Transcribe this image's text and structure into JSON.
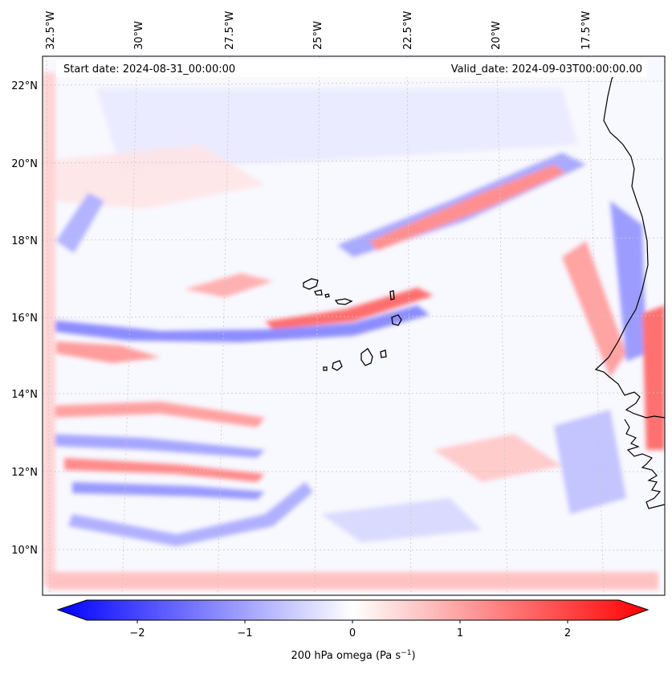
{
  "map": {
    "start_label": "Start date: 2024-08-31_00:00:00",
    "valid_label": "Valid_date: 2024-09-03T00:00:00.00",
    "lon_labels": [
      "32.5°W",
      "30°W",
      "27.5°W",
      "25°W",
      "22.5°W",
      "20°W",
      "17.5°W"
    ],
    "lat_labels": [
      "22°N",
      "20°N",
      "18°N",
      "16°N",
      "14°N",
      "12°N",
      "10°N"
    ],
    "field": "200 hPa omega",
    "colormap": "bwr",
    "colors": {
      "negative": "#0000ff",
      "zero": "#ffffff",
      "positive": "#ff0000",
      "coast": "#000000",
      "grid": "#c8c8c8"
    }
  },
  "colorbar": {
    "ticks": [
      "−2",
      "−1",
      "0",
      "1",
      "2"
    ],
    "min": -2.7,
    "max": 2.7,
    "label_main": "200 hPa omega (Pa s",
    "label_sup": "−1",
    "label_end": ")"
  }
}
